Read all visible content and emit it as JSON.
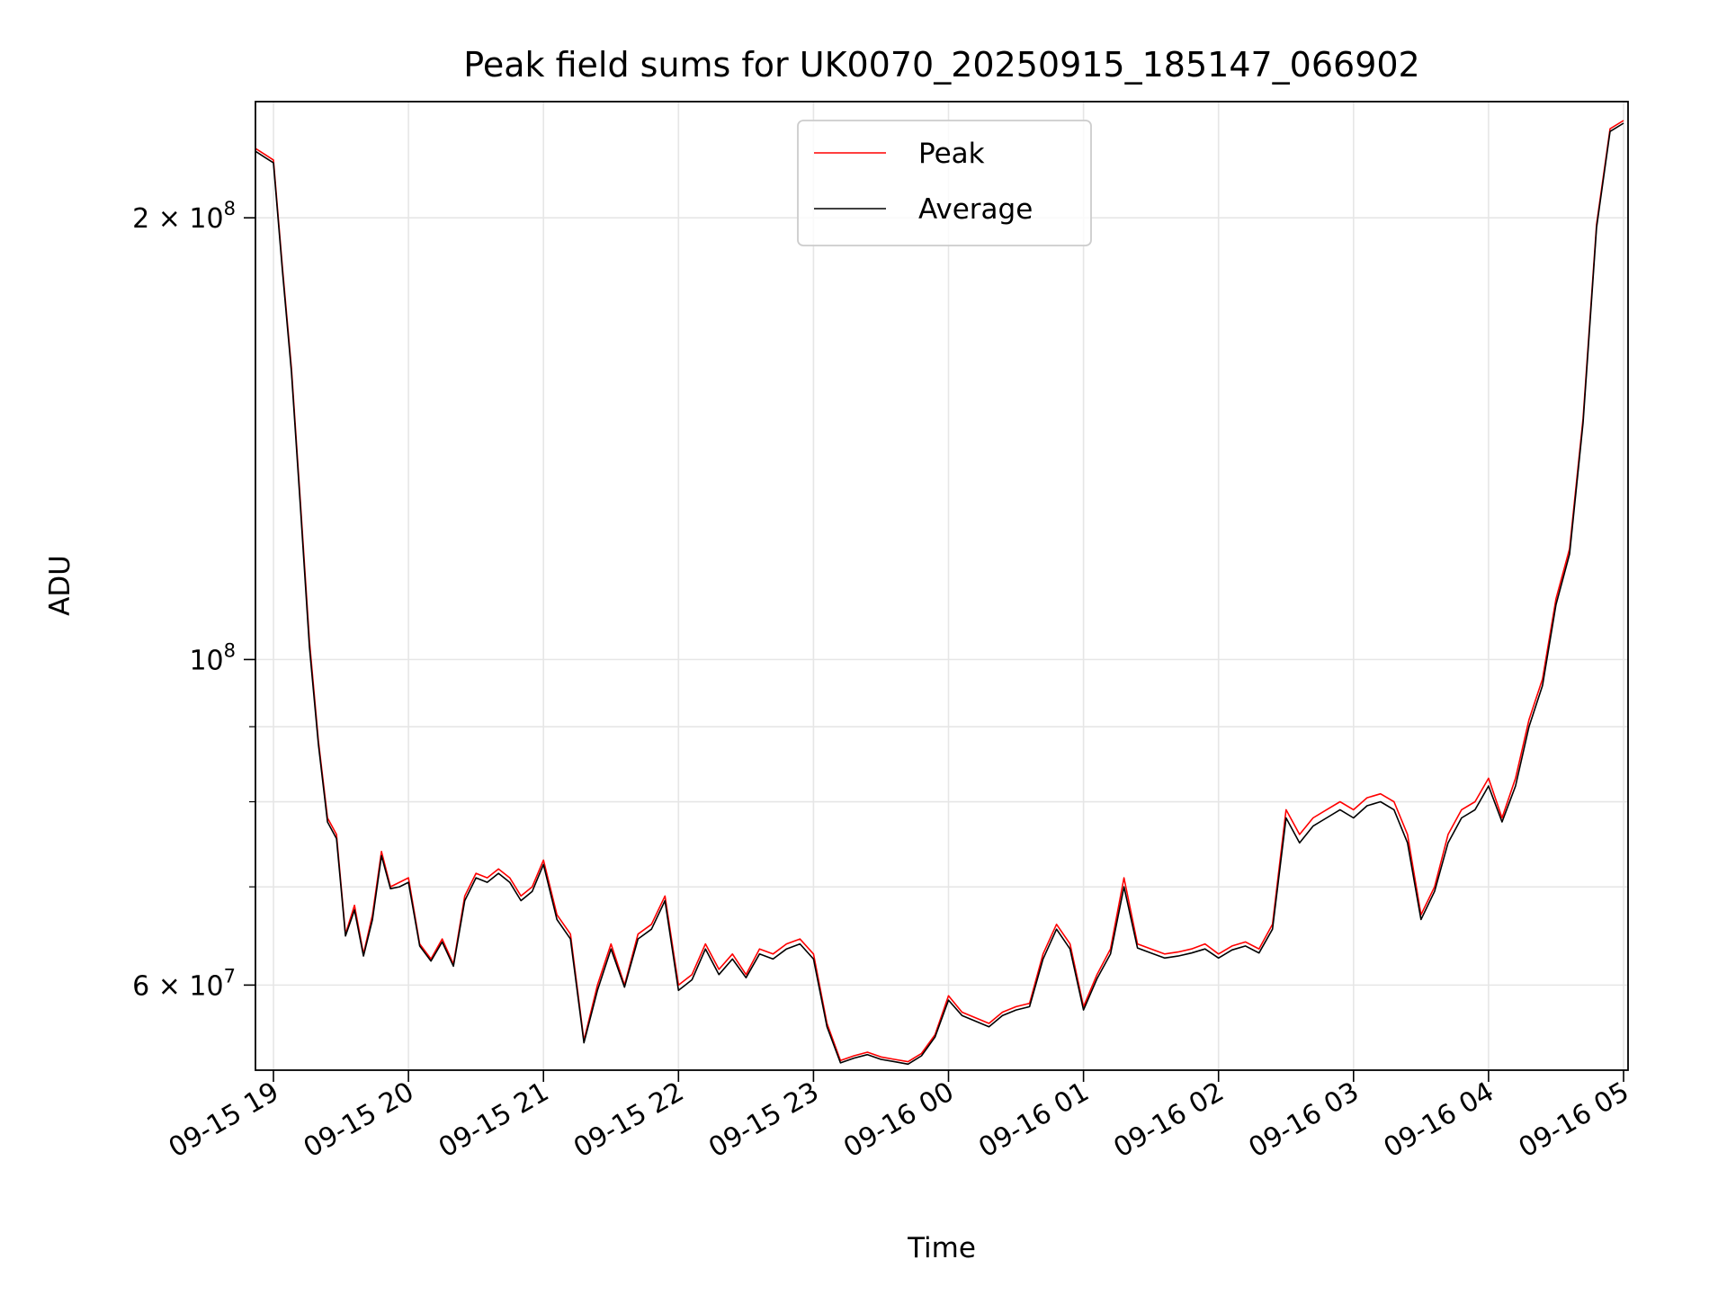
{
  "chart_data": {
    "type": "line",
    "title": "Peak field sums for UK0070_20250915_185147_066902",
    "xlabel": "Time",
    "ylabel": "ADU",
    "yscale": "log",
    "ylim": [
      52500000,
      240000000
    ],
    "xlim": [
      "2025-09-15 18:52",
      "2025-09-16 05:02"
    ],
    "x_ticks": [
      "09-15 19",
      "09-15 20",
      "09-15 21",
      "09-15 22",
      "09-15 23",
      "09-16 00",
      "09-16 01",
      "09-16 02",
      "09-16 03",
      "09-16 04",
      "09-16 05"
    ],
    "x_tick_values": [
      "2025-09-15 19:00",
      "2025-09-15 20:00",
      "2025-09-15 21:00",
      "2025-09-15 22:00",
      "2025-09-15 23:00",
      "2025-09-16 00:00",
      "2025-09-16 01:00",
      "2025-09-16 02:00",
      "2025-09-16 03:00",
      "2025-09-16 04:00",
      "2025-09-16 05:00"
    ],
    "y_ticks": [
      {
        "value": 200000000,
        "mantissa": "2",
        "times": "×",
        "base": "10",
        "exp": "8"
      },
      {
        "value": 100000000,
        "mantissa": "",
        "times": "",
        "base": "10",
        "exp": "8"
      },
      {
        "value": 60000000,
        "mantissa": "6",
        "times": "×",
        "base": "10",
        "exp": "7"
      }
    ],
    "y_minor_ticks": [
      70000000,
      80000000,
      90000000
    ],
    "grid": true,
    "legend": {
      "placement": "upper-center"
    },
    "series": [
      {
        "name": "Peak",
        "color": "#ff0000",
        "x": [
          "2025-09-15 18:52",
          "2025-09-15 18:56",
          "2025-09-15 19:00",
          "2025-09-15 19:04",
          "2025-09-15 19:08",
          "2025-09-15 19:12",
          "2025-09-15 19:16",
          "2025-09-15 19:20",
          "2025-09-15 19:24",
          "2025-09-15 19:28",
          "2025-09-15 19:32",
          "2025-09-15 19:36",
          "2025-09-15 19:40",
          "2025-09-15 19:44",
          "2025-09-15 19:48",
          "2025-09-15 19:52",
          "2025-09-15 19:56",
          "2025-09-15 20:00",
          "2025-09-15 20:05",
          "2025-09-15 20:10",
          "2025-09-15 20:15",
          "2025-09-15 20:20",
          "2025-09-15 20:25",
          "2025-09-15 20:30",
          "2025-09-15 20:35",
          "2025-09-15 20:40",
          "2025-09-15 20:45",
          "2025-09-15 20:50",
          "2025-09-15 20:55",
          "2025-09-15 21:00",
          "2025-09-15 21:06",
          "2025-09-15 21:12",
          "2025-09-15 21:18",
          "2025-09-15 21:24",
          "2025-09-15 21:30",
          "2025-09-15 21:36",
          "2025-09-15 21:42",
          "2025-09-15 21:48",
          "2025-09-15 21:54",
          "2025-09-15 22:00",
          "2025-09-15 22:06",
          "2025-09-15 22:12",
          "2025-09-15 22:18",
          "2025-09-15 22:24",
          "2025-09-15 22:30",
          "2025-09-15 22:36",
          "2025-09-15 22:42",
          "2025-09-15 22:48",
          "2025-09-15 22:54",
          "2025-09-15 23:00",
          "2025-09-15 23:06",
          "2025-09-15 23:12",
          "2025-09-15 23:18",
          "2025-09-15 23:24",
          "2025-09-15 23:30",
          "2025-09-15 23:36",
          "2025-09-15 23:42",
          "2025-09-15 23:48",
          "2025-09-15 23:54",
          "2025-09-16 00:00",
          "2025-09-16 00:06",
          "2025-09-16 00:12",
          "2025-09-16 00:18",
          "2025-09-16 00:24",
          "2025-09-16 00:30",
          "2025-09-16 00:36",
          "2025-09-16 00:42",
          "2025-09-16 00:48",
          "2025-09-16 00:54",
          "2025-09-16 01:00",
          "2025-09-16 01:06",
          "2025-09-16 01:12",
          "2025-09-16 01:18",
          "2025-09-16 01:24",
          "2025-09-16 01:30",
          "2025-09-16 01:36",
          "2025-09-16 01:42",
          "2025-09-16 01:48",
          "2025-09-16 01:54",
          "2025-09-16 02:00",
          "2025-09-16 02:06",
          "2025-09-16 02:12",
          "2025-09-16 02:18",
          "2025-09-16 02:24",
          "2025-09-16 02:30",
          "2025-09-16 02:36",
          "2025-09-16 02:42",
          "2025-09-16 02:48",
          "2025-09-16 02:54",
          "2025-09-16 03:00",
          "2025-09-16 03:06",
          "2025-09-16 03:12",
          "2025-09-16 03:18",
          "2025-09-16 03:24",
          "2025-09-16 03:30",
          "2025-09-16 03:36",
          "2025-09-16 03:42",
          "2025-09-16 03:48",
          "2025-09-16 03:54",
          "2025-09-16 04:00",
          "2025-09-16 04:06",
          "2025-09-16 04:12",
          "2025-09-16 04:18",
          "2025-09-16 04:24",
          "2025-09-16 04:30",
          "2025-09-16 04:36",
          "2025-09-16 04:42",
          "2025-09-16 04:48",
          "2025-09-16 04:54",
          "2025-09-16 05:00"
        ],
        "y": [
          223000000,
          221000000,
          219000000,
          185000000,
          158000000,
          128000000,
          103000000,
          88000000,
          78000000,
          76000000,
          65000000,
          68000000,
          63000000,
          67000000,
          74000000,
          70000000,
          70500000,
          71000000,
          64000000,
          62500000,
          64500000,
          62000000,
          69000000,
          71500000,
          71000000,
          72000000,
          71000000,
          69000000,
          70000000,
          73000000,
          67000000,
          65000000,
          55000000,
          60000000,
          64000000,
          60000000,
          65000000,
          66000000,
          69000000,
          60000000,
          61000000,
          64000000,
          61500000,
          63000000,
          61000000,
          63500000,
          63000000,
          64000000,
          64500000,
          63000000,
          56500000,
          53300000,
          53700000,
          54000000,
          53600000,
          53400000,
          53200000,
          53900000,
          55500000,
          59000000,
          57500000,
          57000000,
          56500000,
          57500000,
          58000000,
          58300000,
          63000000,
          66000000,
          64000000,
          58000000,
          61000000,
          63500000,
          71000000,
          64000000,
          63500000,
          63000000,
          63200000,
          63500000,
          64000000,
          63000000,
          63800000,
          64200000,
          63500000,
          66000000,
          79000000,
          76000000,
          78000000,
          79000000,
          80000000,
          79000000,
          80500000,
          81000000,
          80000000,
          76000000,
          67000000,
          70000000,
          76000000,
          79000000,
          80000000,
          83000000,
          78000000,
          83000000,
          91000000,
          97000000,
          110000000,
          119000000,
          146000000,
          198000000,
          230000000,
          233000000
        ],
        "linewidth": 0.8
      },
      {
        "name": "Average",
        "color": "#000000",
        "x": [
          "2025-09-15 18:52",
          "2025-09-15 18:56",
          "2025-09-15 19:00",
          "2025-09-15 19:04",
          "2025-09-15 19:08",
          "2025-09-15 19:12",
          "2025-09-15 19:16",
          "2025-09-15 19:20",
          "2025-09-15 19:24",
          "2025-09-15 19:28",
          "2025-09-15 19:32",
          "2025-09-15 19:36",
          "2025-09-15 19:40",
          "2025-09-15 19:44",
          "2025-09-15 19:48",
          "2025-09-15 19:52",
          "2025-09-15 19:56",
          "2025-09-15 20:00",
          "2025-09-15 20:05",
          "2025-09-15 20:10",
          "2025-09-15 20:15",
          "2025-09-15 20:20",
          "2025-09-15 20:25",
          "2025-09-15 20:30",
          "2025-09-15 20:35",
          "2025-09-15 20:40",
          "2025-09-15 20:45",
          "2025-09-15 20:50",
          "2025-09-15 20:55",
          "2025-09-15 21:00",
          "2025-09-15 21:06",
          "2025-09-15 21:12",
          "2025-09-15 21:18",
          "2025-09-15 21:24",
          "2025-09-15 21:30",
          "2025-09-15 21:36",
          "2025-09-15 21:42",
          "2025-09-15 21:48",
          "2025-09-15 21:54",
          "2025-09-15 22:00",
          "2025-09-15 22:06",
          "2025-09-15 22:12",
          "2025-09-15 22:18",
          "2025-09-15 22:24",
          "2025-09-15 22:30",
          "2025-09-15 22:36",
          "2025-09-15 22:42",
          "2025-09-15 22:48",
          "2025-09-15 22:54",
          "2025-09-15 23:00",
          "2025-09-15 23:06",
          "2025-09-15 23:12",
          "2025-09-15 23:18",
          "2025-09-15 23:24",
          "2025-09-15 23:30",
          "2025-09-15 23:36",
          "2025-09-15 23:42",
          "2025-09-15 23:48",
          "2025-09-15 23:54",
          "2025-09-16 00:00",
          "2025-09-16 00:06",
          "2025-09-16 00:12",
          "2025-09-16 00:18",
          "2025-09-16 00:24",
          "2025-09-16 00:30",
          "2025-09-16 00:36",
          "2025-09-16 00:42",
          "2025-09-16 00:48",
          "2025-09-16 00:54",
          "2025-09-16 01:00",
          "2025-09-16 01:06",
          "2025-09-16 01:12",
          "2025-09-16 01:18",
          "2025-09-16 01:24",
          "2025-09-16 01:30",
          "2025-09-16 01:36",
          "2025-09-16 01:42",
          "2025-09-16 01:48",
          "2025-09-16 01:54",
          "2025-09-16 02:00",
          "2025-09-16 02:06",
          "2025-09-16 02:12",
          "2025-09-16 02:18",
          "2025-09-16 02:24",
          "2025-09-16 02:30",
          "2025-09-16 02:36",
          "2025-09-16 02:42",
          "2025-09-16 02:48",
          "2025-09-16 02:54",
          "2025-09-16 03:00",
          "2025-09-16 03:06",
          "2025-09-16 03:12",
          "2025-09-16 03:18",
          "2025-09-16 03:24",
          "2025-09-16 03:30",
          "2025-09-16 03:36",
          "2025-09-16 03:42",
          "2025-09-16 03:48",
          "2025-09-16 03:54",
          "2025-09-16 04:00",
          "2025-09-16 04:06",
          "2025-09-16 04:12",
          "2025-09-16 04:18",
          "2025-09-16 04:24",
          "2025-09-16 04:30",
          "2025-09-16 04:36",
          "2025-09-16 04:42",
          "2025-09-16 04:48",
          "2025-09-16 04:54",
          "2025-09-16 05:00"
        ],
        "y": [
          222000000,
          220000000,
          218000000,
          184000000,
          157000000,
          127000000,
          102000000,
          87500000,
          77500000,
          75500000,
          64800000,
          67500000,
          62800000,
          66500000,
          73500000,
          69800000,
          70000000,
          70500000,
          63800000,
          62300000,
          64200000,
          61800000,
          68500000,
          71000000,
          70500000,
          71500000,
          70500000,
          68500000,
          69500000,
          72500000,
          66500000,
          64500000,
          54800000,
          59500000,
          63500000,
          59800000,
          64500000,
          65500000,
          68500000,
          59500000,
          60500000,
          63500000,
          61000000,
          62500000,
          60700000,
          63000000,
          62500000,
          63500000,
          64000000,
          62500000,
          56200000,
          53100000,
          53500000,
          53800000,
          53400000,
          53200000,
          53000000,
          53700000,
          55300000,
          58600000,
          57200000,
          56700000,
          56200000,
          57200000,
          57700000,
          58000000,
          62500000,
          65500000,
          63500000,
          57700000,
          60600000,
          63000000,
          70000000,
          63600000,
          63100000,
          62600000,
          62800000,
          63100000,
          63500000,
          62600000,
          63400000,
          63800000,
          63100000,
          65500000,
          78000000,
          75000000,
          77000000,
          78000000,
          79000000,
          78000000,
          79500000,
          80000000,
          79000000,
          75000000,
          66500000,
          69500000,
          75000000,
          78000000,
          79000000,
          82000000,
          77500000,
          82000000,
          90000000,
          96000000,
          109000000,
          118000000,
          145000000,
          197000000,
          229000000,
          232000000
        ],
        "linewidth": 0.8
      }
    ]
  }
}
